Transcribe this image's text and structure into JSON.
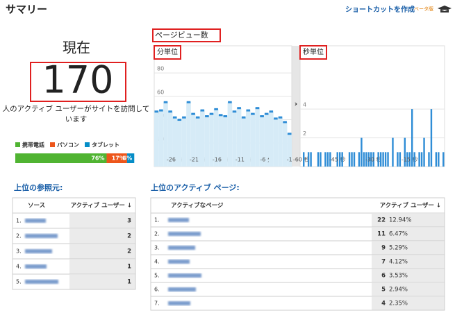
{
  "header": {
    "title": "サマリー",
    "shortcut": "ショートカットを作成",
    "beta": "ベータ版"
  },
  "current": {
    "label": "現在",
    "value": 170,
    "caption": "人のアクティブ ユーザーがサイトを訪問しています"
  },
  "devices": {
    "names": [
      "携帯電話",
      "パソコン",
      "タブレット"
    ],
    "colors": [
      "#50b432",
      "#ed561b",
      "#058dc7"
    ],
    "values": [
      76,
      17,
      6
    ],
    "value_labels": [
      "76%",
      "17%",
      "6%"
    ]
  },
  "pageviews": {
    "title": "ページビュー数",
    "charts": [
      {
        "type": "area-bar",
        "title": "分単位",
        "color": "#2f8dd6",
        "categories": [
          null,
          null,
          null,
          null,
          "-26 分",
          null,
          null,
          null,
          null,
          "-21 分",
          null,
          null,
          null,
          null,
          "-16 分",
          null,
          null,
          null,
          null,
          "-11 分",
          null,
          null,
          null,
          null,
          "-6 分",
          null,
          null,
          null,
          null,
          "-1"
        ],
        "values": [
          47,
          48,
          55,
          47,
          42,
          40,
          42,
          55,
          45,
          42,
          48,
          43,
          45,
          49,
          44,
          43,
          55,
          47,
          50,
          42,
          48,
          45,
          50,
          43,
          45,
          47,
          41,
          42,
          38,
          28
        ],
        "ylim": [
          0,
          86
        ],
        "yticks": [
          20,
          40,
          60,
          80
        ]
      },
      {
        "type": "bar",
        "title": "秒単位",
        "color": "#2f8dd6",
        "categories": [
          "-60 秒",
          null,
          null,
          null,
          null,
          null,
          null,
          null,
          null,
          null,
          null,
          null,
          null,
          null,
          null,
          "-45 秒",
          null,
          null,
          null,
          null,
          null,
          null,
          null,
          null,
          null,
          null,
          null,
          null,
          null,
          null,
          "-30 秒",
          null,
          null,
          null,
          null,
          null,
          null,
          null,
          null,
          null,
          null,
          null,
          null,
          null,
          null,
          "-15 秒",
          null,
          null,
          null,
          null,
          null,
          null,
          null,
          null,
          null,
          null,
          null,
          null,
          null,
          null
        ],
        "values": [
          0,
          1,
          0,
          1,
          1,
          0,
          0,
          1,
          1,
          0,
          1,
          1,
          1,
          0,
          0,
          1,
          1,
          1,
          0,
          0,
          1,
          1,
          1,
          0,
          1,
          2,
          1,
          1,
          1,
          1,
          1,
          0,
          1,
          1,
          1,
          1,
          1,
          0,
          2,
          0,
          1,
          1,
          0,
          2,
          1,
          1,
          4,
          1,
          0,
          1,
          1,
          2,
          0,
          1,
          4,
          0,
          1,
          1,
          0,
          1
        ],
        "ylim": [
          0,
          7
        ],
        "yticks": [
          2,
          4
        ]
      }
    ]
  },
  "referrers": {
    "title": "上位の参照元:",
    "columns": [
      "ソース",
      "アクティブ ユーザー ↓"
    ],
    "rows": [
      [
        "1.",
        3
      ],
      [
        "2.",
        2
      ],
      [
        "3.",
        2
      ],
      [
        "4.",
        1
      ],
      [
        "5.",
        1
      ]
    ]
  },
  "pages": {
    "title": "上位のアクティブ ページ:",
    "columns": [
      "アクティブなページ",
      "アクティブ ユーザー ↓"
    ],
    "rows": [
      [
        "1.",
        22,
        "12.94%"
      ],
      [
        "2.",
        11,
        "6.47%"
      ],
      [
        "3.",
        9,
        "5.29%"
      ],
      [
        "4.",
        7,
        "4.12%"
      ],
      [
        "5.",
        6,
        "3.53%"
      ],
      [
        "6.",
        5,
        "2.94%"
      ],
      [
        "7.",
        4,
        "2.35%"
      ]
    ]
  }
}
